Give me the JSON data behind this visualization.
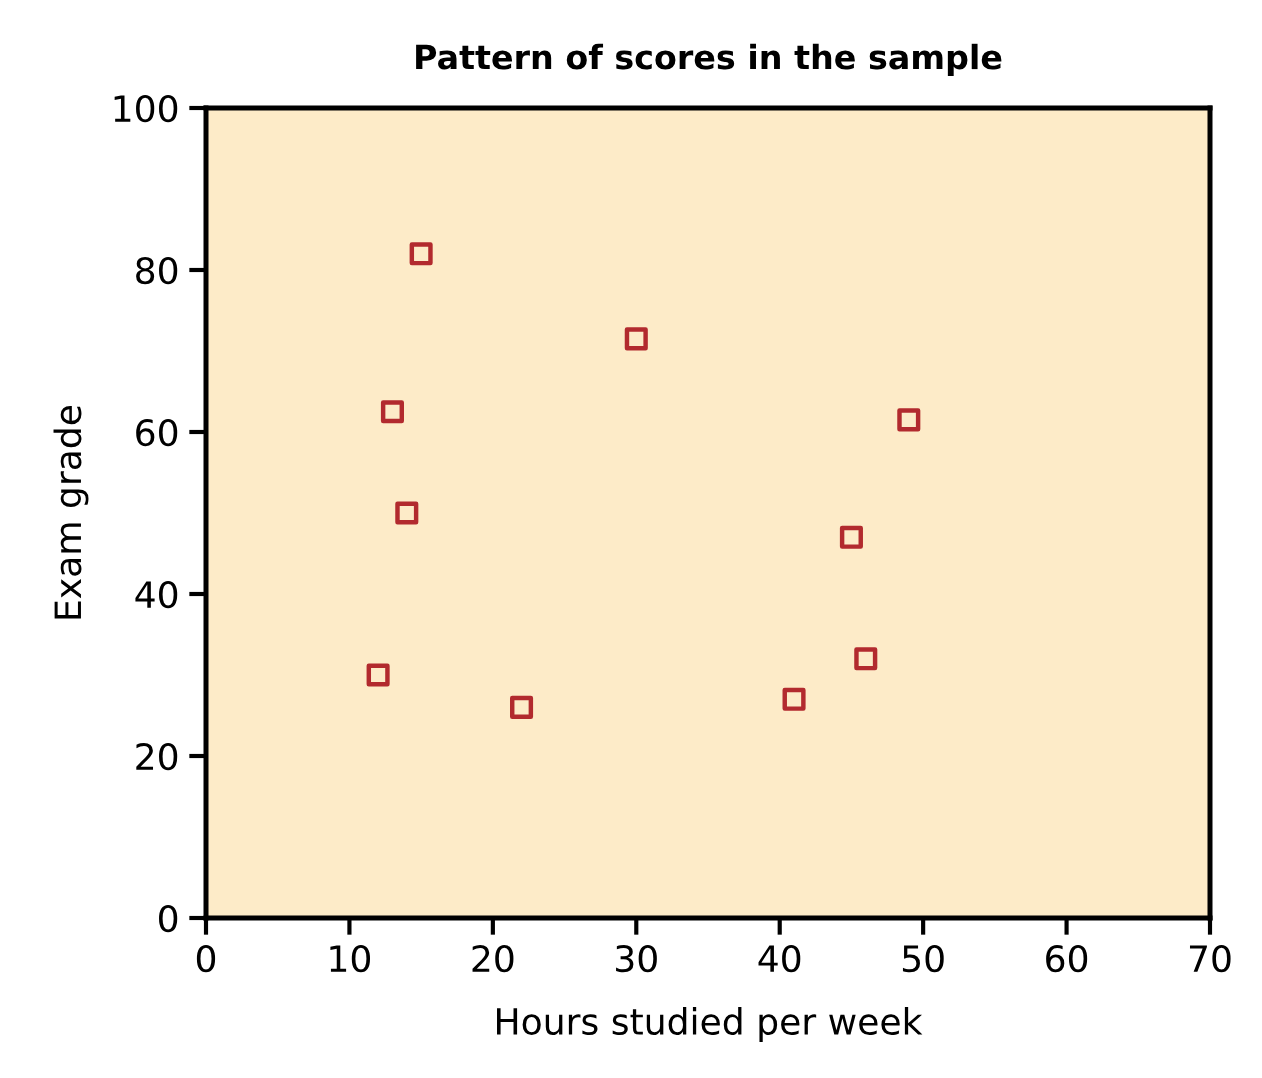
{
  "chart_data": {
    "type": "scatter",
    "title": "Pattern of scores in the sample",
    "xlabel": "Hours studied per week",
    "ylabel": "Exam grade",
    "series": [
      {
        "color": "#b22a2e",
        "x": [
          15,
          30,
          13,
          49,
          14,
          45,
          46,
          12,
          41,
          22
        ],
        "values": [
          82,
          71.5,
          62.5,
          61.5,
          50,
          47,
          32,
          30,
          27,
          26
        ]
      }
    ],
    "marker": "square",
    "xlim": [
      0,
      70
    ],
    "xticks": [
      0,
      10,
      20,
      30,
      40,
      50,
      60,
      70
    ],
    "ylim": [
      0,
      100
    ],
    "yticks": [
      0,
      20,
      40,
      60,
      80,
      100
    ],
    "grid": false,
    "legend": false
  }
}
